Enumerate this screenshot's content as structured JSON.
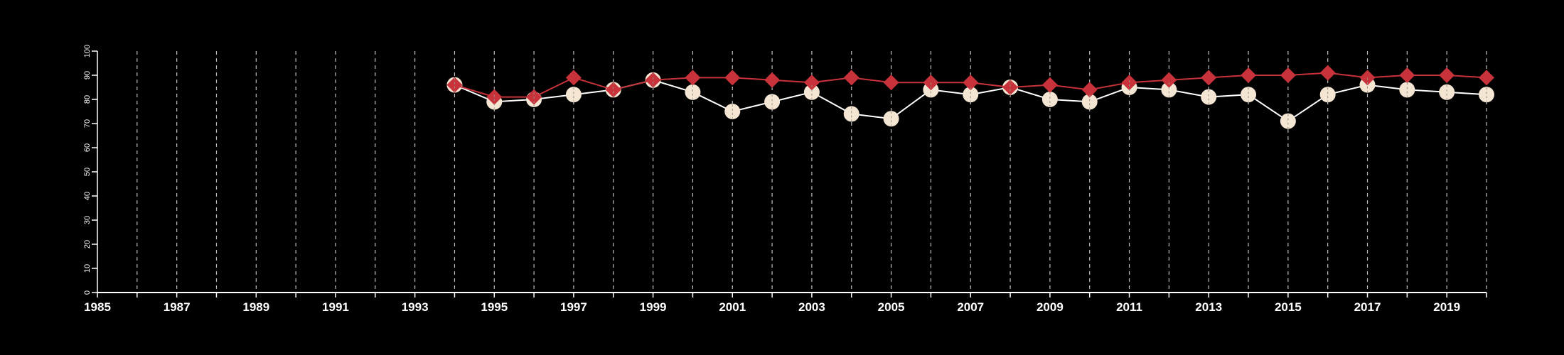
{
  "chart_data": {
    "type": "line",
    "title": "",
    "xlabel": "",
    "ylabel": "",
    "xlim": [
      1985,
      2020
    ],
    "ylim": [
      0,
      100
    ],
    "x_ticks": [
      1985,
      1987,
      1989,
      1991,
      1993,
      1995,
      1997,
      1999,
      2001,
      2003,
      2005,
      2007,
      2009,
      2011,
      2013,
      2015,
      2017,
      2019
    ],
    "x_tick_labels": [
      "1985",
      "1987",
      "1989",
      "1991",
      "1993",
      "1995",
      "1997",
      "1999",
      "2001",
      "2003",
      "2005",
      "2007",
      "2009",
      "2011",
      "2013",
      "2015",
      "2017",
      "2019"
    ],
    "y_ticks": [
      0,
      10,
      20,
      30,
      40,
      50,
      60,
      70,
      80,
      90,
      100
    ],
    "y_tick_labels": [
      "0",
      "10",
      "20",
      "30",
      "40",
      "50",
      "60",
      "70",
      "80",
      "90",
      "100"
    ],
    "grid": "vertical dashed lines at every year",
    "legend": "none",
    "colors": {
      "background": "#000000",
      "axis": "#ffffff",
      "grid": "#bfbfbf",
      "series_circle_fill": "#f5e6d3",
      "series_circle_line": "#ffffff",
      "series_diamond": "#c8323a"
    },
    "series": [
      {
        "marker": "circle",
        "x": [
          1994,
          1995,
          1996,
          1997,
          1998,
          1999,
          2000,
          2001,
          2002,
          2003,
          2004,
          2005,
          2006,
          2007,
          2008,
          2009,
          2010,
          2011,
          2012,
          2013,
          2014,
          2015,
          2016,
          2017,
          2018,
          2019,
          2020
        ],
        "values": [
          86,
          79,
          80,
          82,
          84,
          88,
          83,
          75,
          79,
          83,
          74,
          72,
          84,
          82,
          85,
          80,
          79,
          85,
          84,
          81,
          82,
          71,
          82,
          86,
          84,
          83,
          82
        ]
      },
      {
        "marker": "diamond",
        "x": [
          1994,
          1995,
          1996,
          1997,
          1998,
          1999,
          2000,
          2001,
          2002,
          2003,
          2004,
          2005,
          2006,
          2007,
          2008,
          2009,
          2010,
          2011,
          2012,
          2013,
          2014,
          2015,
          2016,
          2017,
          2018,
          2019,
          2020
        ],
        "values": [
          86,
          81,
          81,
          89,
          84,
          88,
          89,
          89,
          88,
          87,
          89,
          87,
          87,
          87,
          85,
          86,
          84,
          87,
          88,
          89,
          90,
          90,
          91,
          89,
          90,
          90,
          89
        ]
      }
    ]
  }
}
